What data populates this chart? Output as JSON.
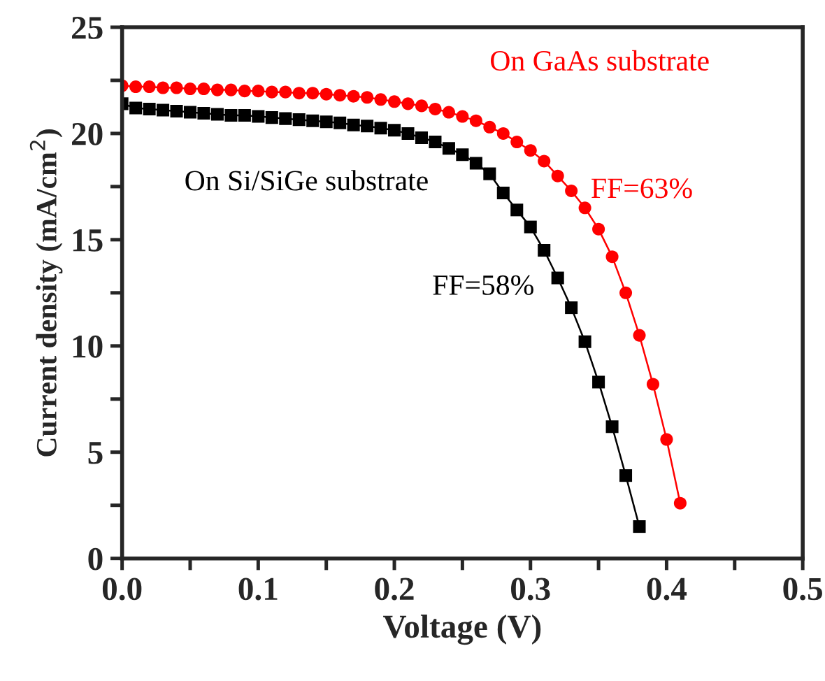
{
  "chart_data": {
    "type": "line",
    "xlabel": "Voltage (V)",
    "ylabel": "Current density (mA/cm$^{2}$)",
    "xlim": [
      0,
      0.5
    ],
    "ylim": [
      0,
      25
    ],
    "xticks": [
      {
        "value": 0,
        "label": "0.0"
      },
      {
        "value": 0.05,
        "label": null
      },
      0.1,
      {
        "value": 0.15,
        "label": null
      },
      0.2,
      {
        "value": 0.25,
        "label": null
      },
      0.3,
      {
        "value": 0.35,
        "label": null
      },
      0.4,
      {
        "value": 0.45,
        "label": null
      },
      0.5
    ],
    "yticks": [
      0,
      {
        "value": 2.5,
        "label": null
      },
      5,
      {
        "value": 7.5,
        "label": null
      },
      10,
      {
        "value": 12.5,
        "label": null
      },
      15,
      {
        "value": 17.5,
        "label": null
      },
      20,
      {
        "value": 22.5,
        "label": null
      },
      25
    ],
    "grid": false,
    "legend": false,
    "series": [
      {
        "name": "On GaAs substrate",
        "color": "#ff0000",
        "marker": "circle",
        "x": [
          0,
          0.01,
          0.02,
          0.03,
          0.04,
          0.05,
          0.06,
          0.07,
          0.08,
          0.09,
          0.1,
          0.11,
          0.12,
          0.13,
          0.14,
          0.15,
          0.16,
          0.17,
          0.18,
          0.19,
          0.2,
          0.21,
          0.22,
          0.23,
          0.24,
          0.25,
          0.26,
          0.27,
          0.28,
          0.29,
          0.3,
          0.31,
          0.32,
          0.33,
          0.34,
          0.35,
          0.36,
          0.37,
          0.38,
          0.39,
          0.4,
          0.41
        ],
        "values": [
          22.25,
          22.2,
          22.2,
          22.15,
          22.15,
          22.1,
          22.1,
          22.05,
          22.05,
          22.0,
          22.0,
          21.95,
          21.95,
          21.9,
          21.9,
          21.85,
          21.8,
          21.75,
          21.7,
          21.6,
          21.5,
          21.4,
          21.3,
          21.15,
          21.0,
          20.8,
          20.6,
          20.3,
          20.0,
          19.6,
          19.2,
          18.7,
          18.0,
          17.3,
          16.5,
          15.5,
          14.2,
          12.5,
          10.5,
          8.2,
          5.6,
          2.6
        ]
      },
      {
        "name": "On Si/SiGe substrate",
        "color": "#000000",
        "marker": "square",
        "x": [
          0,
          0.01,
          0.02,
          0.03,
          0.04,
          0.05,
          0.06,
          0.07,
          0.08,
          0.09,
          0.1,
          0.11,
          0.12,
          0.13,
          0.14,
          0.15,
          0.16,
          0.17,
          0.18,
          0.19,
          0.2,
          0.21,
          0.22,
          0.23,
          0.24,
          0.25,
          0.26,
          0.27,
          0.28,
          0.29,
          0.3,
          0.31,
          0.32,
          0.33,
          0.34,
          0.35,
          0.36,
          0.37,
          0.38
        ],
        "values": [
          21.4,
          21.2,
          21.15,
          21.1,
          21.05,
          21.0,
          20.95,
          20.9,
          20.85,
          20.85,
          20.8,
          20.75,
          20.7,
          20.65,
          20.6,
          20.55,
          20.5,
          20.4,
          20.35,
          20.25,
          20.15,
          20.0,
          19.8,
          19.6,
          19.3,
          19.0,
          18.6,
          18.1,
          17.2,
          16.4,
          15.6,
          14.5,
          13.2,
          11.8,
          10.2,
          8.3,
          6.2,
          3.9,
          1.5
        ]
      }
    ],
    "annotations": [
      "FF=63%",
      "FF=58%"
    ]
  }
}
